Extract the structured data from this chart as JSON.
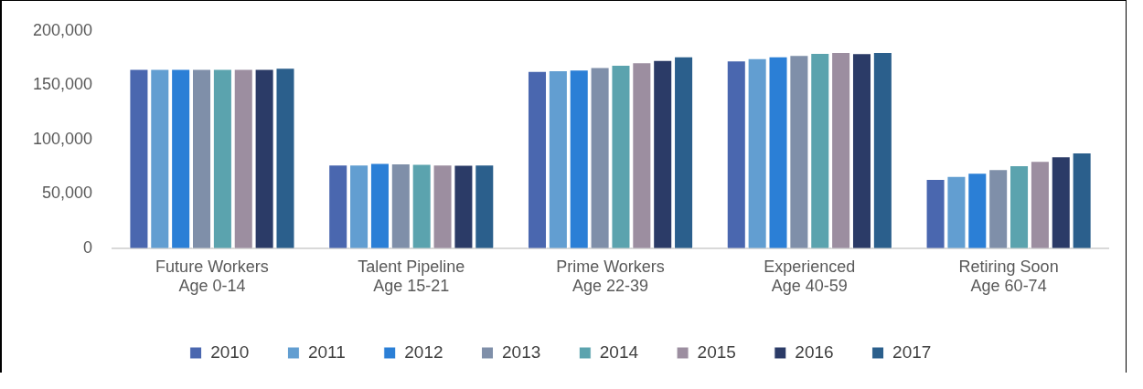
{
  "chart_data": {
    "type": "bar",
    "categories": [
      "Future Workers\nAge 0-14",
      "Talent Pipeline\nAge 15-21",
      "Prime Workers\nAge 22-39",
      "Experienced\nAge 40-59",
      "Retiring Soon\nAge 60-74"
    ],
    "series": [
      {
        "name": "2010",
        "color": "#4a67af",
        "values": [
          165000,
          77000,
          163000,
          172700,
          63700
        ]
      },
      {
        "name": "2011",
        "color": "#629ed1",
        "values": [
          165000,
          77000,
          163700,
          174800,
          66400
        ]
      },
      {
        "name": "2012",
        "color": "#2b7fd6",
        "values": [
          165000,
          78500,
          164400,
          176600,
          69400
        ]
      },
      {
        "name": "2013",
        "color": "#7f8fa9",
        "values": [
          165000,
          78000,
          166700,
          177800,
          72700
        ]
      },
      {
        "name": "2014",
        "color": "#5ba3ae",
        "values": [
          165000,
          77500,
          168700,
          179600,
          76200
        ]
      },
      {
        "name": "2015",
        "color": "#9c8ea0",
        "values": [
          165000,
          77000,
          171000,
          180500,
          80300
        ]
      },
      {
        "name": "2016",
        "color": "#2b3b67",
        "values": [
          165000,
          76800,
          173100,
          179400,
          84500
        ]
      },
      {
        "name": "2017",
        "color": "#2b5f8c",
        "values": [
          166000,
          77000,
          176600,
          180500,
          88000
        ]
      }
    ],
    "ylim": [
      0,
      200000
    ],
    "yticks": [
      {
        "value": 0,
        "label": "0"
      },
      {
        "value": 50000,
        "label": "50,000"
      },
      {
        "value": 100000,
        "label": "100,000"
      },
      {
        "value": 150000,
        "label": "150,000"
      },
      {
        "value": 200000,
        "label": "200,000"
      }
    ],
    "grid": false,
    "legend": "bottom"
  }
}
